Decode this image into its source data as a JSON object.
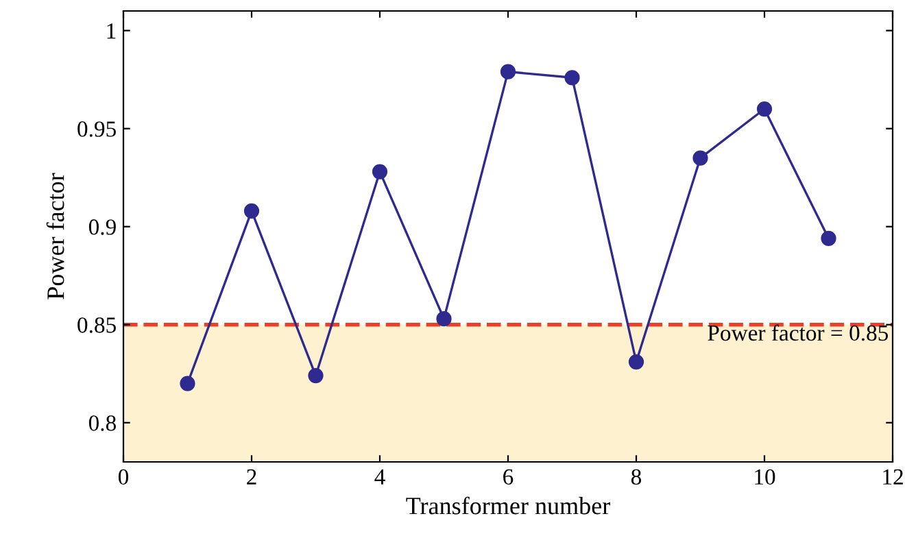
{
  "chart_data": {
    "type": "line",
    "xlabel": "Transformer number",
    "ylabel": "Power factor",
    "x": [
      1,
      2,
      3,
      4,
      5,
      6,
      7,
      8,
      9,
      10,
      11
    ],
    "series": [
      {
        "color": "#2e2a8f",
        "values": [
          0.82,
          0.908,
          0.824,
          0.928,
          0.853,
          0.979,
          0.976,
          0.831,
          0.935,
          0.96,
          0.894
        ]
      }
    ],
    "xlim": [
      0,
      12
    ],
    "xticks": [
      0,
      2,
      4,
      6,
      8,
      10,
      12
    ],
    "ylim": [
      0.78,
      1.01
    ],
    "yticks": [
      0.8,
      0.85,
      0.9,
      0.95,
      1
    ],
    "ref_lines": [
      {
        "axis": "y",
        "value": 0.85,
        "label": "Power factor = 0.85",
        "color": "#e8402a",
        "line_style": "dashed"
      }
    ],
    "bands": [
      {
        "axis": "y",
        "from": 0.78,
        "to": 0.85,
        "color": "#fdf1cf"
      }
    ],
    "marker": "circle",
    "line_style": "solid",
    "grid": false,
    "legend": false
  }
}
